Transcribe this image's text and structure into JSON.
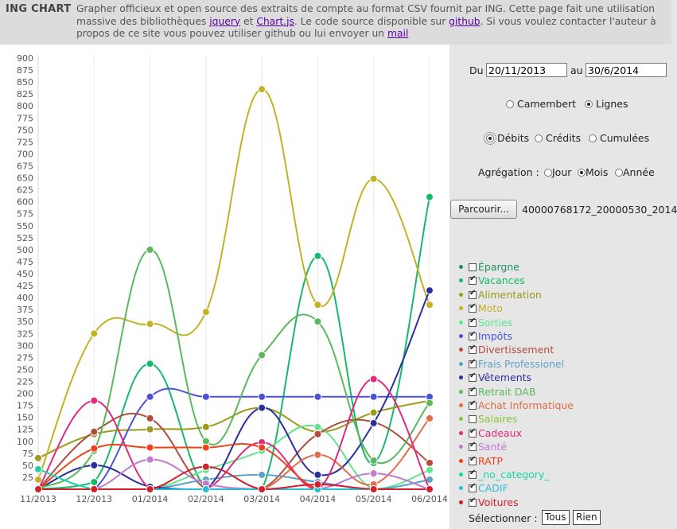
{
  "header": {
    "brand": "ING CHART",
    "intro_before_jquery": "Grapher officieux et open source des extraits de compte au format CSV fournit par ING. Cette page fait une utilisation massive des bibliothèques ",
    "link_jquery": "jquery",
    "intro_et": " et ",
    "link_chartjs": "Chart.js",
    "intro_mid": ". Le code source disponible sur ",
    "link_github": "github",
    "intro_after_github": ". Si vous voulez contacter l'auteur à propos de ce site vous pouvez utiliser github ou lui envoyer un ",
    "link_mail": "mail"
  },
  "controls": {
    "from_label": "Du",
    "from_value": "20/11/2013",
    "to_label": "au",
    "to_value": "30/6/2014",
    "chart_types": [
      {
        "label": "Camembert",
        "selected": false
      },
      {
        "label": "Lignes",
        "selected": true
      }
    ],
    "flows": [
      {
        "label": "Débits",
        "selected": true
      },
      {
        "label": "Crédits",
        "selected": false
      },
      {
        "label": "Cumulées",
        "selected": false
      }
    ],
    "aggregation_label": "Agrégation :",
    "aggregations": [
      {
        "label": "Jour",
        "selected": false
      },
      {
        "label": "Mois",
        "selected": true
      },
      {
        "label": "Année",
        "selected": false
      }
    ],
    "browse_label": "Parcourir...",
    "file_name": "40000768172_20000530_2014",
    "select_label": "Sélectionner :",
    "select_all": "Tous",
    "select_none": "Rien"
  },
  "chart_data": {
    "type": "line",
    "x": [
      "11/2013",
      "12/2013",
      "01/2014",
      "02/2014",
      "03/2014",
      "04/2014",
      "05/2014",
      "06/2014"
    ],
    "ylim": [
      0,
      900
    ],
    "yticks": [
      "25",
      "50",
      "75",
      "100",
      "125",
      "150",
      "175",
      "200",
      "225",
      "250",
      "275",
      "300",
      "325",
      "350",
      "375",
      "400",
      "425",
      "450",
      "475",
      "500",
      "525",
      "550",
      "575",
      "600",
      "625",
      "650",
      "675",
      "700",
      "725",
      "750",
      "775",
      "800",
      "825",
      "850",
      "875",
      "900"
    ],
    "grid": "vertical",
    "series": [
      {
        "name": "Épargne",
        "color": "#1f8f5f",
        "checked": false,
        "values": null
      },
      {
        "name": "Vacances",
        "color": "#17b86a",
        "checked": true,
        "values": [
          0,
          15,
          262,
          0,
          0,
          487,
          55,
          610
        ]
      },
      {
        "name": "Alimentation",
        "color": "#9b9a1c",
        "checked": true,
        "values": [
          65,
          115,
          125,
          130,
          170,
          120,
          160,
          185
        ]
      },
      {
        "name": "Moto",
        "color": "#c2b226",
        "checked": true,
        "values": [
          20,
          325,
          345,
          370,
          835,
          385,
          648,
          385
        ]
      },
      {
        "name": "Sorties",
        "color": "#5fe68e",
        "checked": true,
        "values": [
          0,
          0,
          0,
          40,
          80,
          130,
          0,
          40
        ]
      },
      {
        "name": "Impôts",
        "color": "#4c52d6",
        "checked": true,
        "values": [
          0,
          0,
          193,
          193,
          193,
          193,
          193,
          193
        ]
      },
      {
        "name": "Divertissement",
        "color": "#b04e3c",
        "checked": true,
        "values": [
          0,
          120,
          148,
          0,
          0,
          115,
          140,
          55
        ]
      },
      {
        "name": "Frais Professionel",
        "color": "#5aa3c7",
        "checked": true,
        "values": [
          0,
          0,
          0,
          20,
          30,
          15,
          0,
          20
        ]
      },
      {
        "name": "Vêtements",
        "color": "#2b2f9c",
        "checked": true,
        "values": [
          0,
          50,
          5,
          0,
          170,
          30,
          138,
          415
        ]
      },
      {
        "name": "Retrait DAB",
        "color": "#5cb85c",
        "checked": true,
        "values": [
          0,
          80,
          500,
          100,
          280,
          350,
          60,
          180
        ]
      },
      {
        "name": "Achat Informatique",
        "color": "#e06c48",
        "checked": true,
        "values": [
          0,
          0,
          0,
          0,
          0,
          72,
          10,
          148
        ]
      },
      {
        "name": "Salaires",
        "color": "#8bc43a",
        "checked": false,
        "values": null
      },
      {
        "name": "Cadeaux",
        "color": "#e02a7e",
        "checked": true,
        "values": [
          0,
          185,
          0,
          0,
          98,
          0,
          230,
          0
        ]
      },
      {
        "name": "Santé",
        "color": "#c07ad0",
        "checked": true,
        "values": [
          0,
          0,
          62,
          12,
          0,
          0,
          33,
          0
        ]
      },
      {
        "name": "RATP",
        "color": "#f0401a",
        "checked": true,
        "values": [
          0,
          85,
          87,
          87,
          87,
          0,
          0,
          0
        ]
      },
      {
        "name": "_no_category_",
        "color": "#19d3a8",
        "checked": true,
        "values": [
          42,
          0,
          0,
          0,
          0,
          0,
          0,
          0
        ]
      },
      {
        "name": "CADIF",
        "color": "#2bbed3",
        "checked": true,
        "values": [
          0,
          0,
          0,
          0,
          0,
          0,
          0,
          0
        ]
      },
      {
        "name": "Voitures",
        "color": "#d11f2b",
        "checked": true,
        "values": [
          0,
          0,
          0,
          47,
          0,
          10,
          0,
          0
        ]
      }
    ]
  }
}
